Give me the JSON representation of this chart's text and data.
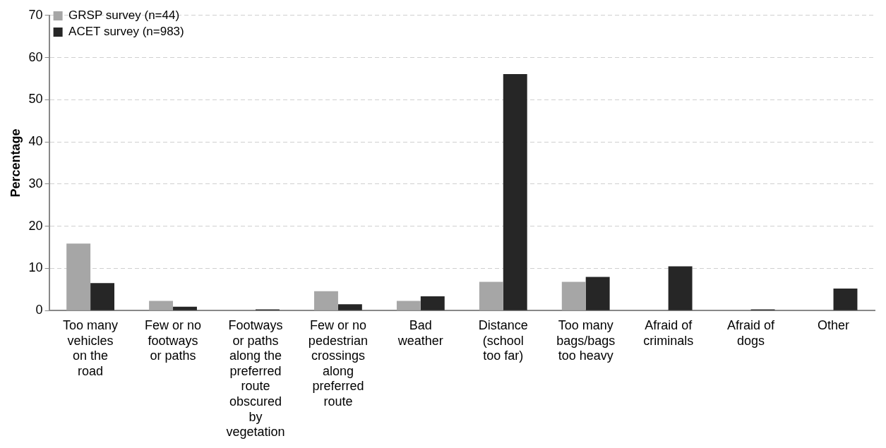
{
  "chart_data": {
    "type": "bar",
    "ylabel": "Percentage",
    "categories": [
      "Too many vehicles on the road",
      "Few or no footways or paths",
      "Footways or paths along the preferred route obscured by vegetation",
      "Few or no pedestrian crossings along preferred route",
      "Bad weather",
      "Distance (school too far)",
      "Too many bags/bags too heavy",
      "Afraid of criminals",
      "Afraid of dogs",
      "Other"
    ],
    "series": [
      {
        "name": "GRSP survey (n=44)",
        "color": "#a6a6a6",
        "values": [
          15.9,
          2.3,
          0,
          4.6,
          2.3,
          6.8,
          6.8,
          0,
          0,
          0
        ]
      },
      {
        "name": "ACET survey (n=983)",
        "color": "#262626",
        "values": [
          6.5,
          0.9,
          0.3,
          1.5,
          3.4,
          56.1,
          8.0,
          10.5,
          0.3,
          5.2
        ]
      }
    ],
    "ylim": [
      0,
      70
    ],
    "yticks": [
      0,
      10,
      20,
      30,
      40,
      50,
      60,
      70
    ],
    "grid": "y",
    "legend": "top left"
  }
}
